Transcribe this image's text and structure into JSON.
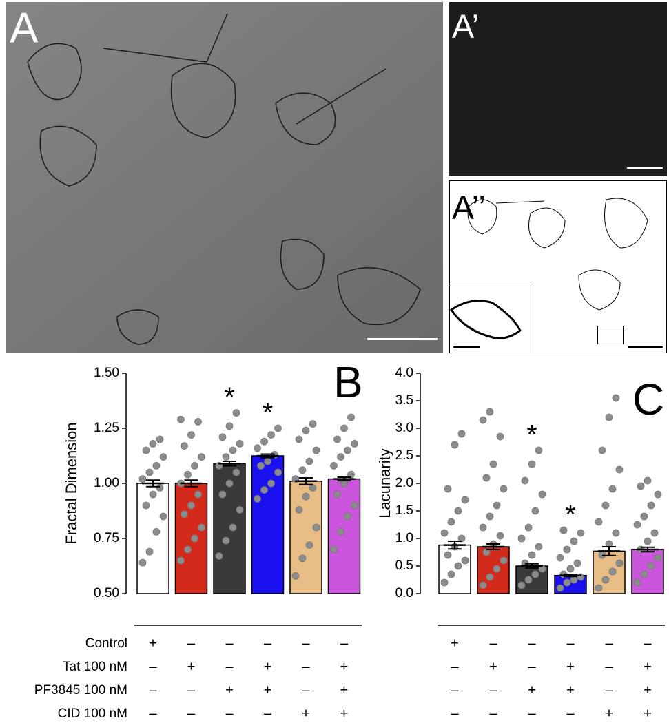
{
  "panel_labels": [
    "A",
    "A’",
    "A’’"
  ],
  "chart_data": [
    {
      "type": "bar",
      "panel": "B",
      "ylabel": "Fractal Dimension",
      "ylim": [
        0.5,
        1.5
      ],
      "yticks": [
        {
          "value": 0.5,
          "label": "0.50"
        },
        {
          "value": 0.75,
          "label": "0.75"
        },
        {
          "value": 1,
          "label": "1.00"
        },
        {
          "value": 1.25,
          "label": "1.25"
        },
        {
          "value": 1.5,
          "label": "1.50"
        }
      ],
      "colors": [
        "#ffffff",
        "#d42a1c",
        "#3a3a3a",
        "#1a10f0",
        "#e8bd85",
        "#cc55dd"
      ],
      "values": [
        1.0,
        1.0,
        1.09,
        1.125,
        1.01,
        1.02
      ],
      "errors": [
        0.015,
        0.015,
        0.01,
        0.008,
        0.015,
        0.008
      ],
      "significance": [
        null,
        null,
        "*",
        "*",
        null,
        null
      ],
      "points": [
        [
          0.64,
          0.69,
          0.78,
          0.85,
          0.9,
          0.95,
          0.98,
          1.02,
          1.05,
          1.08,
          1.12,
          1.15,
          1.18,
          1.2
        ],
        [
          0.65,
          0.7,
          0.75,
          0.8,
          0.86,
          0.9,
          0.95,
          1.0,
          1.04,
          1.08,
          1.12,
          1.17,
          1.22,
          1.28,
          1.29
        ],
        [
          0.67,
          0.74,
          0.8,
          0.88,
          0.95,
          1.0,
          1.05,
          1.08,
          1.12,
          1.15,
          1.18,
          1.21,
          1.26,
          1.32
        ],
        [
          0.93,
          0.97,
          1.0,
          1.05,
          1.08,
          1.1,
          1.13,
          1.16,
          1.19,
          1.22,
          1.25
        ],
        [
          0.58,
          0.66,
          0.72,
          0.8,
          0.88,
          0.94,
          0.98,
          1.02,
          1.06,
          1.1,
          1.15,
          1.2,
          1.24,
          1.27
        ],
        [
          0.7,
          0.78,
          0.85,
          0.9,
          0.95,
          1.0,
          1.04,
          1.08,
          1.12,
          1.15,
          1.18,
          1.2,
          1.25,
          1.3
        ]
      ]
    },
    {
      "type": "bar",
      "panel": "C",
      "ylabel": "Lacunarity",
      "ylim": [
        0,
        4
      ],
      "yticks": [
        {
          "value": 0,
          "label": "0.0"
        },
        {
          "value": 0.5,
          "label": "0.5"
        },
        {
          "value": 1,
          "label": "1.0"
        },
        {
          "value": 1.5,
          "label": "1.5"
        },
        {
          "value": 2,
          "label": "2.0"
        },
        {
          "value": 2.5,
          "label": "2.5"
        },
        {
          "value": 3,
          "label": "3.0"
        },
        {
          "value": 3.5,
          "label": "3.5"
        },
        {
          "value": 4,
          "label": "4.0"
        }
      ],
      "colors": [
        "#ffffff",
        "#d42a1c",
        "#3a3a3a",
        "#1a10f0",
        "#e8bd85",
        "#cc55dd"
      ],
      "values": [
        0.88,
        0.85,
        0.5,
        0.33,
        0.77,
        0.8
      ],
      "errors": [
        0.07,
        0.05,
        0.04,
        0.02,
        0.08,
        0.04
      ],
      "significance": [
        null,
        null,
        "*",
        "*",
        null,
        null
      ],
      "points": [
        [
          0.2,
          0.35,
          0.5,
          0.6,
          0.7,
          0.85,
          1.0,
          1.1,
          1.3,
          1.5,
          1.7,
          1.9,
          2.7,
          2.9
        ],
        [
          0.15,
          0.3,
          0.45,
          0.6,
          0.75,
          0.9,
          1.05,
          1.2,
          1.4,
          1.6,
          1.9,
          2.1,
          2.35,
          2.85,
          3.15,
          3.3
        ],
        [
          0.15,
          0.25,
          0.35,
          0.45,
          0.55,
          0.7,
          0.85,
          1.0,
          1.2,
          1.5,
          1.8,
          2.05,
          2.35,
          2.6
        ],
        [
          0.1,
          0.2,
          0.25,
          0.3,
          0.35,
          0.45,
          0.55,
          0.65,
          0.8,
          0.95,
          1.1,
          1.15
        ],
        [
          0.1,
          0.25,
          0.4,
          0.55,
          0.7,
          0.9,
          1.1,
          1.3,
          1.6,
          1.9,
          2.25,
          2.6,
          3.2,
          3.55
        ],
        [
          0.2,
          0.35,
          0.5,
          0.65,
          0.8,
          0.95,
          1.1,
          1.25,
          1.4,
          1.6,
          1.8,
          1.95,
          2.05
        ]
      ]
    }
  ],
  "treatments": [
    {
      "label": "Control",
      "signs": [
        "+",
        "–",
        "–",
        "–",
        "–",
        "–"
      ]
    },
    {
      "label": "Tat 100 nM",
      "signs": [
        "–",
        "+",
        "–",
        "+",
        "–",
        "+"
      ]
    },
    {
      "label": "PF3845 100 nM",
      "signs": [
        "–",
        "–",
        "+",
        "+",
        "–",
        "+"
      ]
    },
    {
      "label": "CID 100 nM",
      "signs": [
        "–",
        "–",
        "–",
        "–",
        "+",
        "+"
      ]
    }
  ]
}
